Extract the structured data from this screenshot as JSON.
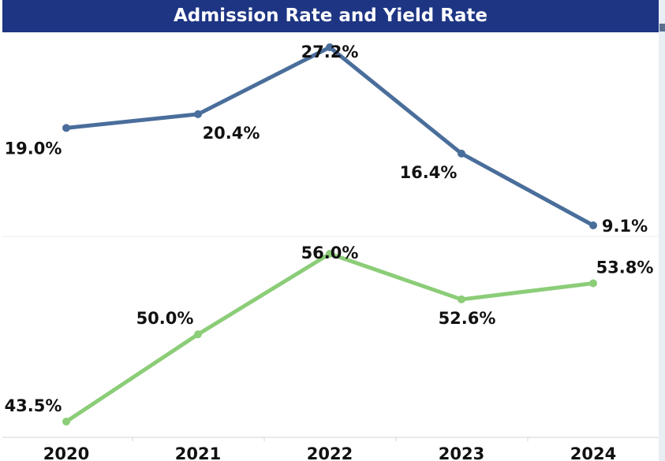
{
  "header": {
    "title": "Admission Rate and Yield Rate"
  },
  "chart_data": [
    {
      "type": "line",
      "panel": "top",
      "title": "",
      "xlabel": "",
      "ylabel": "",
      "categories": [
        "2020",
        "2021",
        "2022",
        "2023",
        "2024"
      ],
      "ylim": [
        5,
        30
      ],
      "grid": false,
      "series": [
        {
          "values": [
            19.0,
            20.4,
            27.2,
            16.4,
            9.1
          ],
          "labels": [
            "19.0%",
            "20.4%",
            "27.2%",
            "16.4%",
            "9.1%"
          ],
          "color": "#4a6e9b"
        }
      ]
    },
    {
      "type": "line",
      "panel": "bottom",
      "title": "",
      "xlabel": "",
      "ylabel": "",
      "categories": [
        "2020",
        "2021",
        "2022",
        "2023",
        "2024"
      ],
      "ylim": [
        42,
        57
      ],
      "grid": false,
      "series": [
        {
          "values": [
            43.5,
            50.0,
            56.0,
            52.6,
            53.8
          ],
          "labels": [
            "43.5%",
            "50.0%",
            "56.0%",
            "52.6%",
            "53.8%"
          ],
          "color": "#8ccd78"
        }
      ]
    }
  ]
}
